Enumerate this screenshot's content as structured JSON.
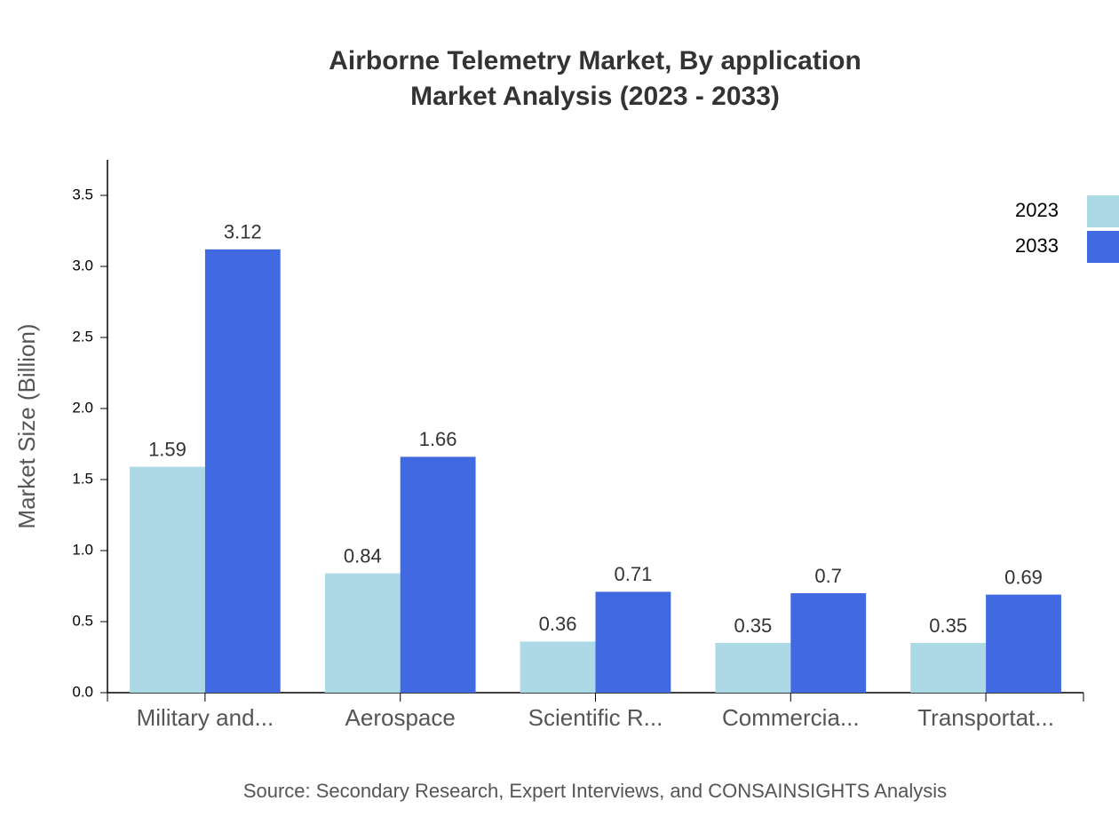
{
  "chart_data": {
    "type": "bar",
    "title": "Airborne Telemetry Market, By application",
    "subtitle": "Market Analysis (2023 - 2033)",
    "y_label": "Market Size (Billion)",
    "source": "Source: Secondary Research, Expert Interviews, and CONSAINSIGHTS Analysis",
    "categories": [
      "Military and...",
      "Aerospace",
      "Scientific R...",
      "Commercia...",
      "Transportat..."
    ],
    "series": [
      {
        "name": "2023",
        "color": "#add8e6",
        "values": [
          1.59,
          0.84,
          0.36,
          0.35,
          0.35
        ]
      },
      {
        "name": "2033",
        "color": "#4169e1",
        "values": [
          3.12,
          1.66,
          0.71,
          0.7,
          0.69
        ]
      }
    ],
    "ylim": [
      0,
      3.75
    ],
    "yticks": [
      {
        "value": 0,
        "label": "0.0"
      },
      0.5,
      {
        "value": 1,
        "label": "1.0"
      },
      1.5,
      {
        "value": 2,
        "label": "2.0"
      },
      2.5,
      {
        "value": 3,
        "label": "3.0"
      },
      3.5
    ],
    "legend": "top-right"
  }
}
